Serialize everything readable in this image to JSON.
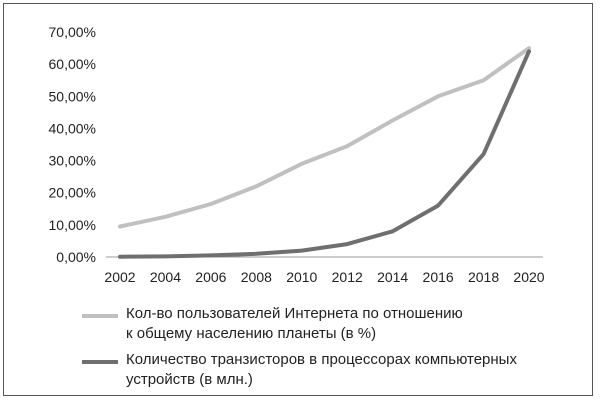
{
  "chart_data": {
    "type": "line",
    "x": [
      "2002",
      "2004",
      "2006",
      "2008",
      "2010",
      "2012",
      "2014",
      "2016",
      "2018",
      "2020"
    ],
    "ylim": [
      0,
      70
    ],
    "y_ticks": [
      "0,00%",
      "10,00%",
      "20,00%",
      "30,00%",
      "40,00%",
      "50,00%",
      "60,00%",
      "70,00%"
    ],
    "series": [
      {
        "name": "Кол-во пользователей Интернета по отношению к общему населению планеты (в %)",
        "name_lines": [
          "Кол-во пользователей Интернета по отношению",
          "к общему населению планеты (в %)"
        ],
        "color": "#c0c0c0",
        "values": [
          9.5,
          12.5,
          16.5,
          22,
          29,
          34.5,
          42.5,
          50,
          55,
          65
        ]
      },
      {
        "name": "Количество транзисторов в процессорах компьютерных устройств (в млн.)",
        "name_lines": [
          "Количество транзисторов в процессорах компьютерных",
          "устройств (в млн.)"
        ],
        "color": "#6f6f6f",
        "values": [
          0.1,
          0.2,
          0.5,
          1,
          2,
          4,
          8,
          16,
          32,
          64
        ]
      }
    ],
    "grid": false,
    "legend_position": "bottom"
  }
}
